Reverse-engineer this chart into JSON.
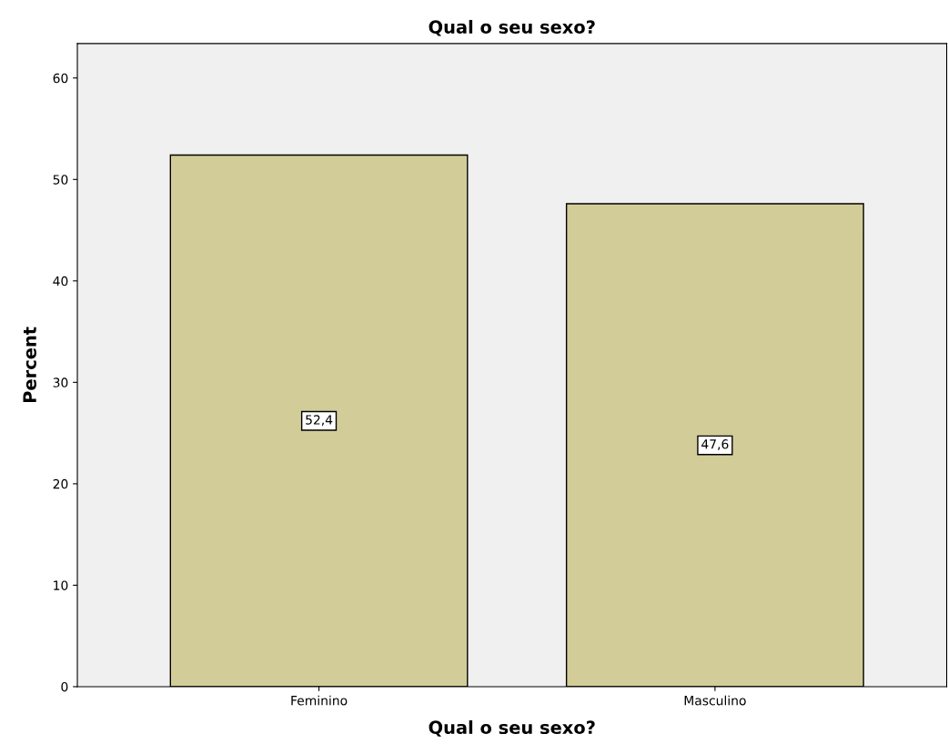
{
  "chart_data": {
    "type": "bar",
    "title": "Qual o seu sexo?",
    "xlabel": "Qual o seu sexo?",
    "ylabel": "Percent",
    "categories": [
      "Feminino",
      "Masculino"
    ],
    "values": [
      52.4,
      47.6
    ],
    "value_labels": [
      "52,4",
      "47,6"
    ],
    "color": "#d2cd98",
    "ylim": [
      0,
      63.4
    ],
    "yticks": [
      0,
      10,
      20,
      30,
      40,
      50,
      60
    ],
    "grid": false
  }
}
